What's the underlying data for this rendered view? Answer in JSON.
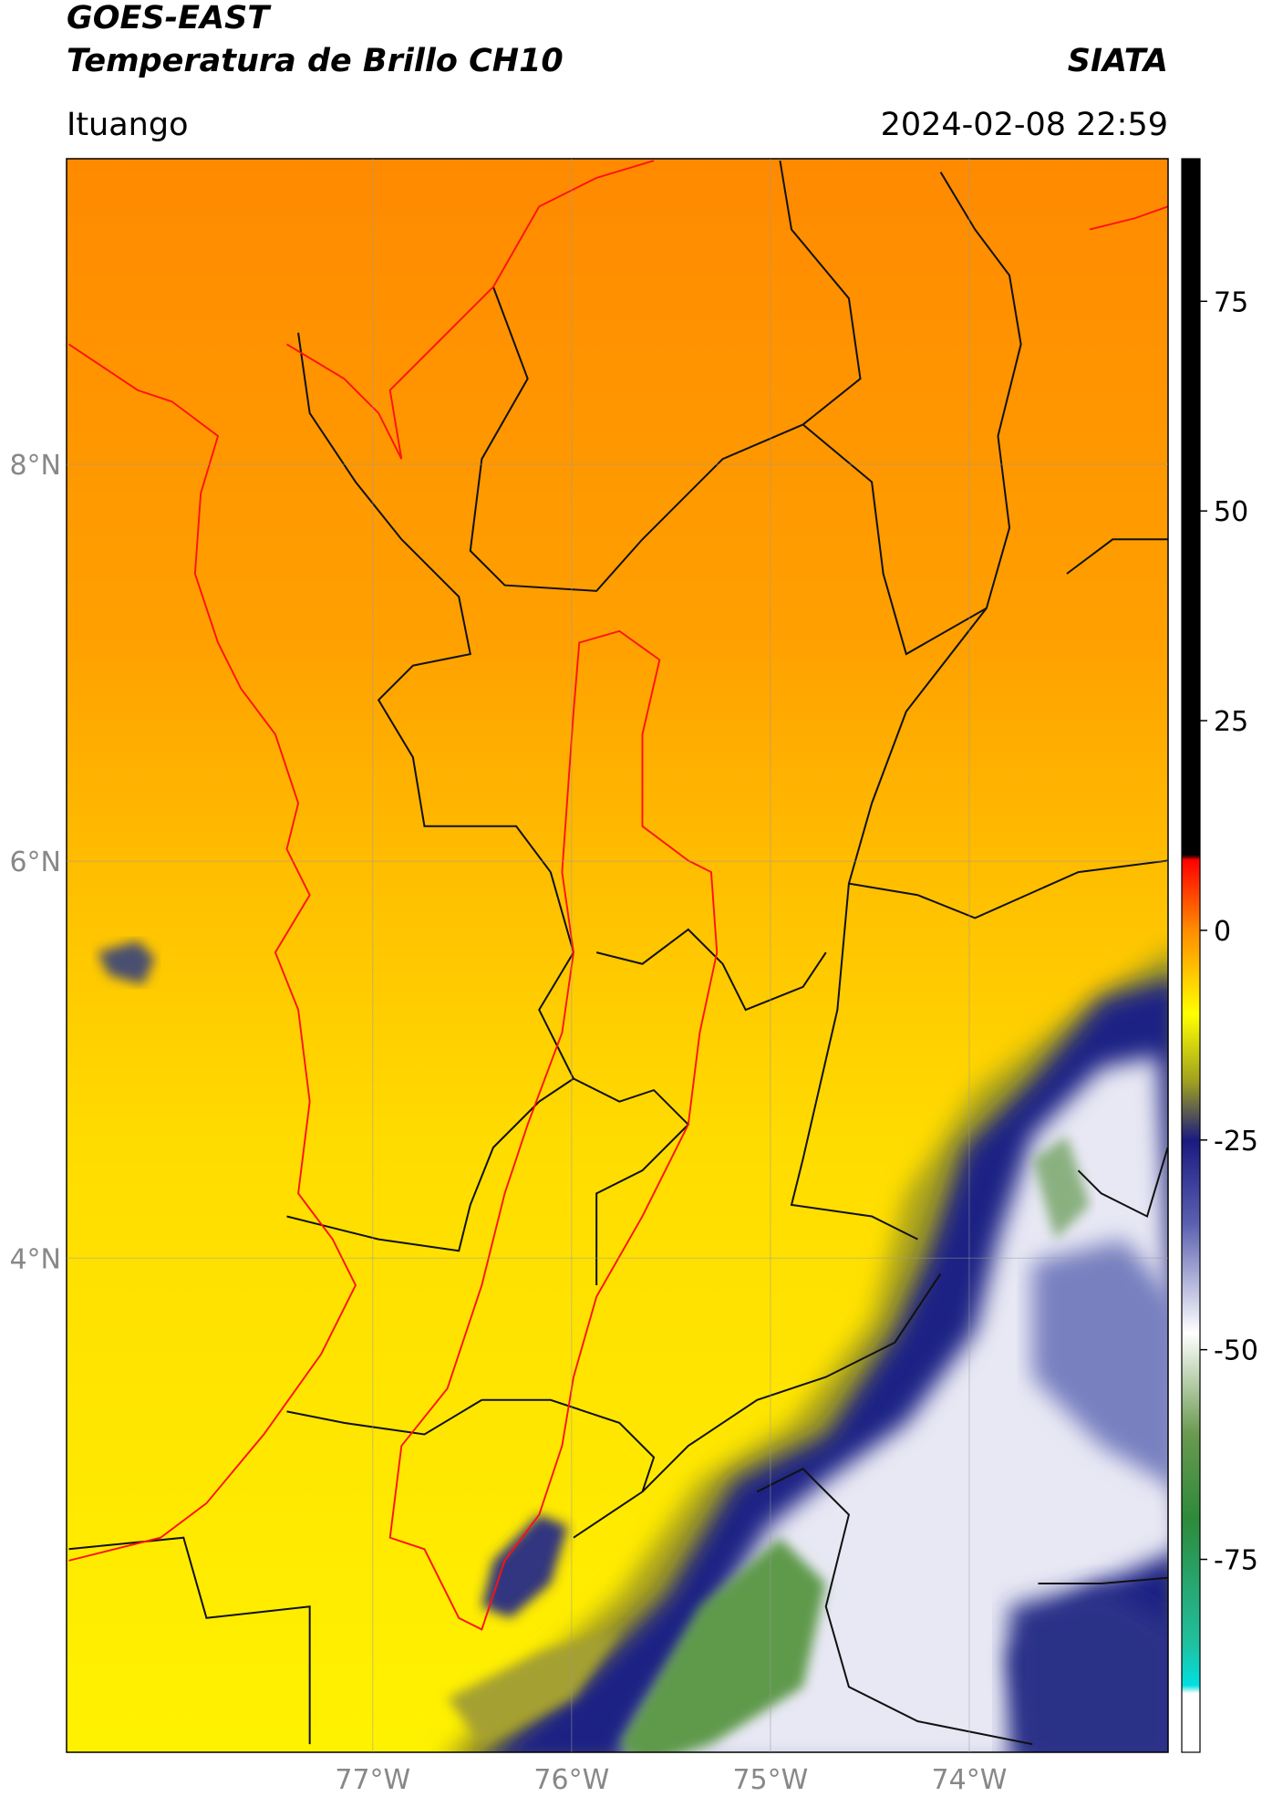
{
  "header": {
    "title": "GOES-EAST",
    "subtitle": "Temperatura de Brillo CH10",
    "source": "SIATA",
    "location": "Ituango",
    "datetime": "2024-02-08 22:59"
  },
  "map": {
    "xlim": [
      -78.54,
      -73.0
    ],
    "ylim": [
      1.51,
      9.54
    ],
    "xticks": [
      {
        "value": -77,
        "label": "77°W"
      },
      {
        "value": -76,
        "label": "76°W"
      },
      {
        "value": -75,
        "label": "75°W"
      },
      {
        "value": -74,
        "label": "74°W"
      }
    ],
    "yticks": [
      {
        "value": 8,
        "label": "8°N"
      },
      {
        "value": 6,
        "label": "6°N"
      },
      {
        "value": 4,
        "label": "4°N"
      }
    ],
    "grid": true
  },
  "colorbar": {
    "lim": [
      -98,
      92
    ],
    "ticks": [
      75,
      50,
      25,
      0,
      -25,
      -50,
      -75
    ]
  }
}
